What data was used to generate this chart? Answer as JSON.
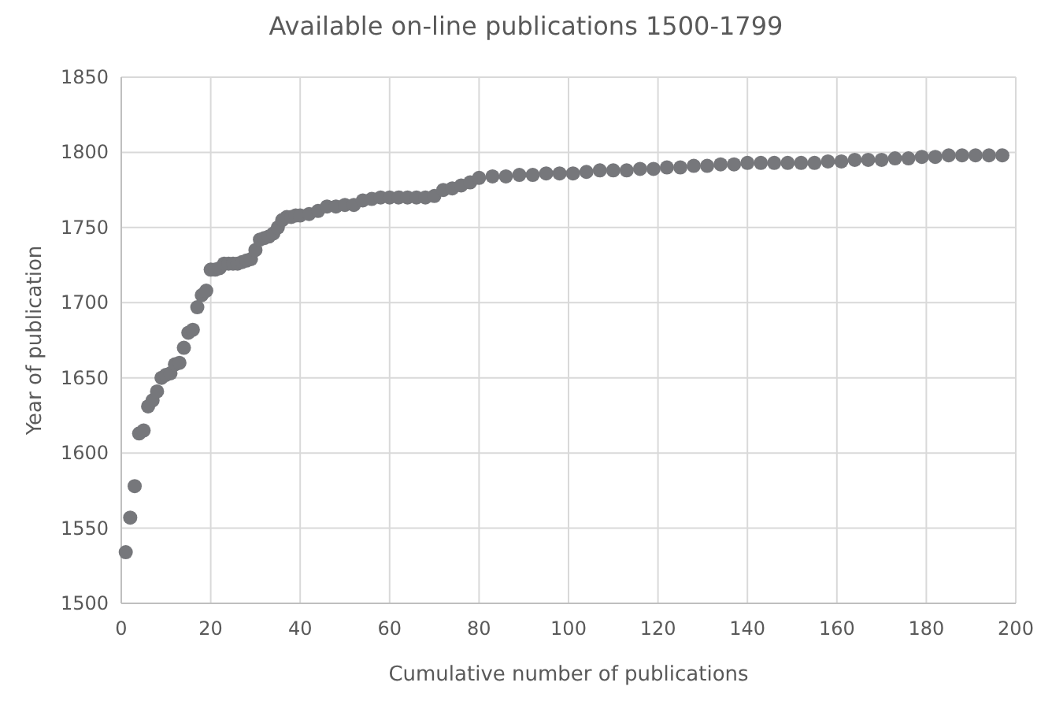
{
  "chart_data": {
    "type": "scatter",
    "title": "Available on-line publications 1500-1799",
    "xlabel": "Cumulative number of publications",
    "ylabel": "Year of publication",
    "xlim": [
      0,
      200
    ],
    "xticks": [
      0,
      20,
      40,
      60,
      80,
      100,
      120,
      140,
      160,
      180,
      200
    ],
    "ylim": [
      1500,
      1850
    ],
    "yticks": [
      1500,
      1550,
      1600,
      1650,
      1700,
      1750,
      1800,
      1850
    ],
    "grid": true,
    "marker": "circle",
    "series": [
      {
        "color": "#76777b",
        "x": [
          1,
          2,
          3,
          4,
          5,
          6,
          7,
          8,
          9,
          10,
          11,
          12,
          13,
          14,
          15,
          16,
          17,
          18,
          19,
          20,
          21,
          22,
          23,
          24,
          25,
          26,
          27,
          28,
          29,
          30,
          31,
          32,
          33,
          34,
          35,
          36,
          37,
          38,
          39,
          40,
          42,
          44,
          46,
          48,
          50,
          52,
          54,
          56,
          58,
          60,
          62,
          64,
          66,
          68,
          70,
          72,
          74,
          76,
          78,
          80,
          83,
          86,
          89,
          92,
          95,
          98,
          101,
          104,
          107,
          110,
          113,
          116,
          119,
          122,
          125,
          128,
          131,
          134,
          137,
          140,
          143,
          146,
          149,
          152,
          155,
          158,
          161,
          164,
          167,
          170,
          173,
          176,
          179,
          182,
          185,
          188,
          191,
          194,
          197
        ],
        "values": [
          1534,
          1557,
          1578,
          1613,
          1615,
          1631,
          1635,
          1641,
          1650,
          1652,
          1653,
          1659,
          1660,
          1670,
          1680,
          1682,
          1697,
          1705,
          1708,
          1722,
          1722,
          1723,
          1726,
          1726,
          1726,
          1726,
          1727,
          1728,
          1729,
          1735,
          1742,
          1743,
          1744,
          1746,
          1750,
          1755,
          1757,
          1757,
          1758,
          1758,
          1759,
          1761,
          1764,
          1764,
          1765,
          1765,
          1768,
          1769,
          1770,
          1770,
          1770,
          1770,
          1770,
          1770,
          1771,
          1775,
          1776,
          1778,
          1780,
          1783,
          1784,
          1784,
          1785,
          1785,
          1786,
          1786,
          1786,
          1787,
          1788,
          1788,
          1788,
          1789,
          1789,
          1790,
          1790,
          1791,
          1791,
          1792,
          1792,
          1793,
          1793,
          1793,
          1793,
          1793,
          1793,
          1794,
          1794,
          1795,
          1795,
          1795,
          1796,
          1796,
          1797,
          1797,
          1798,
          1798,
          1798,
          1798,
          1798
        ]
      }
    ]
  }
}
